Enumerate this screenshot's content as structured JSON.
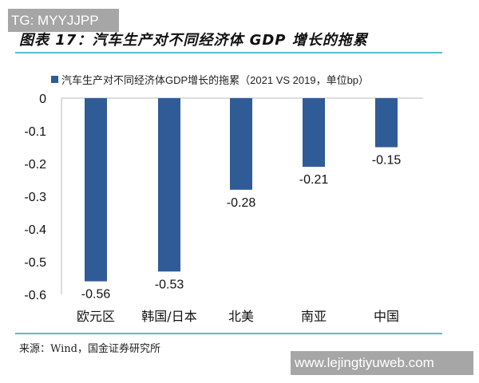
{
  "watermark_top": "TG: MYYJJPP",
  "watermark_bottom": "www.lejingtiyuweb.com",
  "title": "图表 17：汽车生产对不同经济体 GDP 增长的拖累",
  "source": "来源：Wind，国金证券研究所",
  "colors": {
    "bar": "#2f5c97",
    "rule": "#5bbccb"
  },
  "chart_data": {
    "type": "bar",
    "categories": [
      "欧元区",
      "韩国/日本",
      "北美",
      "南亚",
      "中国"
    ],
    "series": [
      {
        "name": "汽车生产对不同经济体GDP增长的拖累（2021 VS 2019，单位bp）",
        "values": [
          -0.56,
          -0.53,
          -0.28,
          -0.21,
          -0.15
        ]
      }
    ],
    "data_labels": [
      "-0.56",
      "-0.53",
      "-0.28",
      "-0.21",
      "-0.15"
    ],
    "yticks": [
      "0",
      "-0.1",
      "-0.2",
      "-0.3",
      "-0.4",
      "-0.5",
      "-0.6"
    ],
    "ylim": [
      -0.6,
      0
    ],
    "grid": false,
    "legend": "top"
  }
}
